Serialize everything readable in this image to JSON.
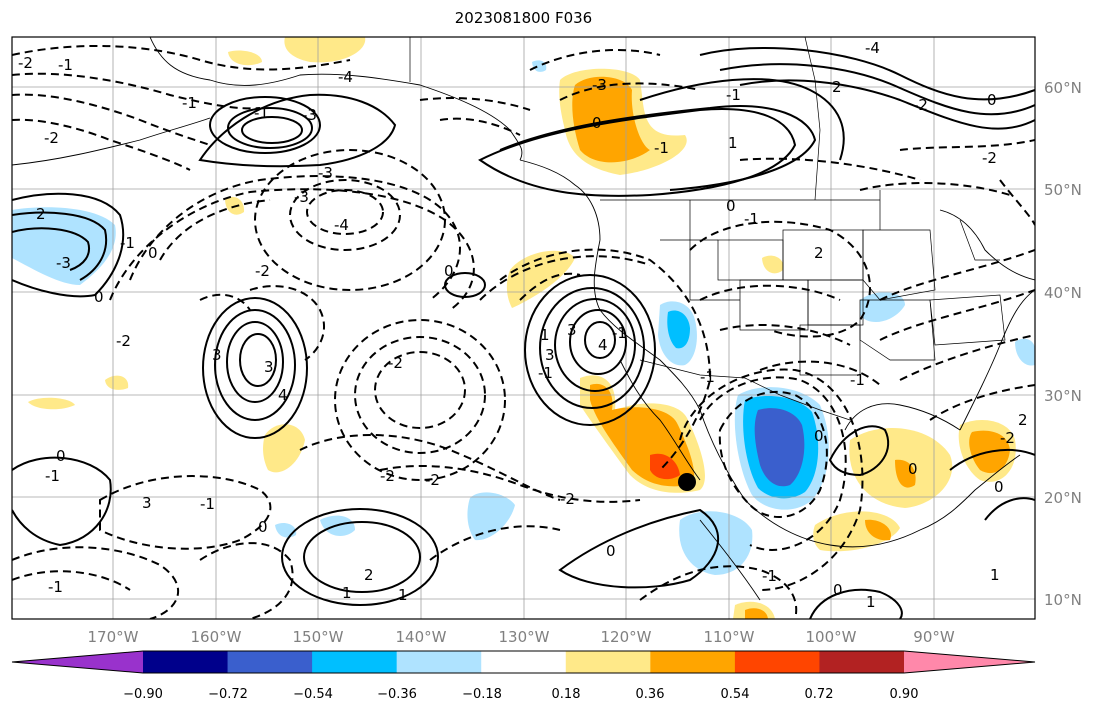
{
  "title": "2023081800 F036",
  "map": {
    "lat_labels": [
      "60°N",
      "50°N",
      "40°N",
      "30°N",
      "20°N",
      "10°N"
    ],
    "lon_labels": [
      "170°W",
      "160°W",
      "150°W",
      "140°W",
      "130°W",
      "120°W",
      "110°W",
      "100°W",
      "90°W"
    ],
    "contour_labels": [
      "-2",
      "-1",
      "-2",
      "-1",
      "-1",
      "-3",
      "-4",
      "-3",
      "-3",
      "2",
      "-3",
      "0",
      "-1",
      "-2",
      "-2",
      "-4",
      "-3",
      "0",
      "-4",
      "-1",
      "1",
      "-1",
      "-2",
      "0",
      "2",
      "-2",
      "0",
      "0",
      "-1",
      "3",
      "3",
      "4",
      "-1",
      "-2",
      "-2",
      "-2",
      "0",
      "-1",
      "-1",
      "-1",
      "0",
      "1",
      "2",
      "1",
      "0",
      "0",
      "0",
      "1",
      "0",
      "-1",
      "3",
      "1",
      "3",
      "4",
      "0",
      "3",
      "-2",
      "2",
      "2",
      "0",
      "-2",
      "-1",
      "1",
      "-1",
      "-1"
    ],
    "marker": "black circle near 21.5°N 113.5°W"
  },
  "colorbar": {
    "ticks": [
      "−0.90",
      "−0.72",
      "−0.54",
      "−0.36",
      "−0.18",
      "0.18",
      "0.36",
      "0.54",
      "0.72",
      "0.90"
    ],
    "colors": [
      "#9932cc",
      "#00008b",
      "#3a5fcd",
      "#00bfff",
      "#afe3ff",
      "#ffffff",
      "#ffe989",
      "#ffa500",
      "#ff4500",
      "#b22222",
      "#ff88aa"
    ]
  }
}
